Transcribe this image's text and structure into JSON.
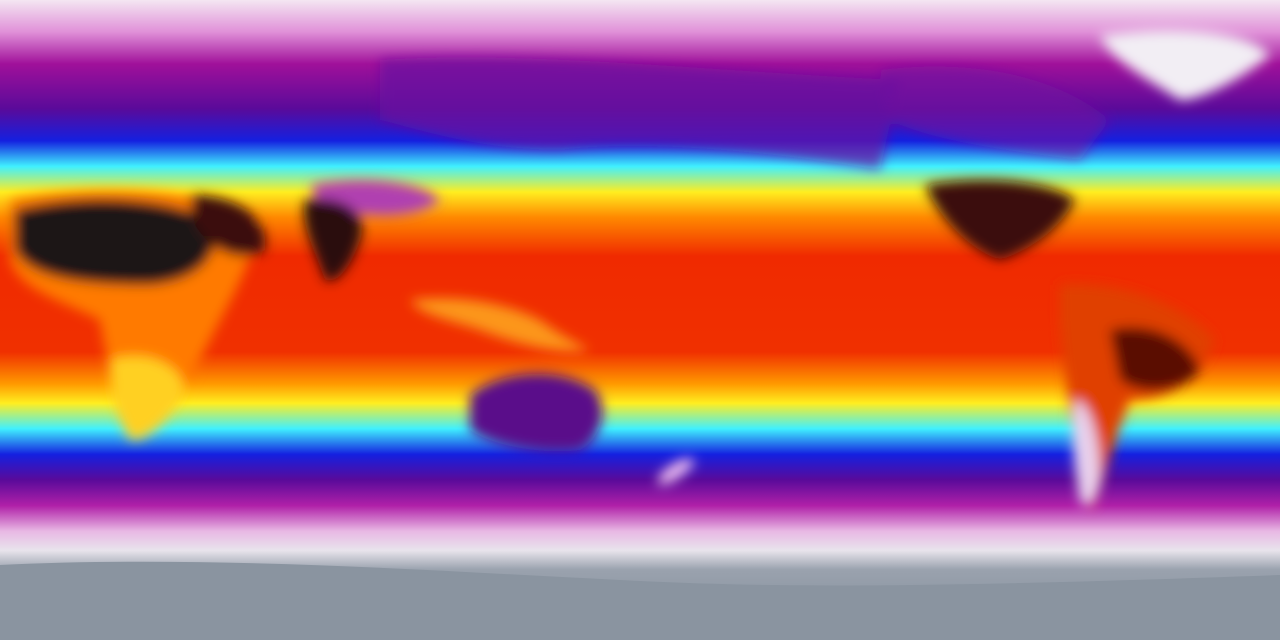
{
  "map": {
    "projection": "equirectangular",
    "palette": {
      "polar_white": "#f4e6f2",
      "pink": "#e07ad6",
      "magenta": "#a0109a",
      "purple": "#5a0a9a",
      "blue": "#1420e0",
      "cyan": "#40f0ff",
      "yellow": "#ffee20",
      "orange": "#ff8800",
      "red": "#f02a00",
      "dark_red": "#7a0a00",
      "black": "#1a1416",
      "antarctic_grey": "#8a94a0"
    }
  }
}
